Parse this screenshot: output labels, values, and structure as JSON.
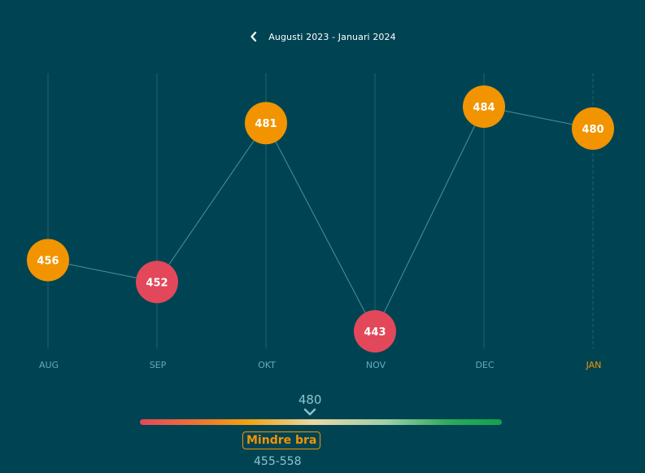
{
  "header": {
    "title": "Augusti 2023 - Januari 2024",
    "back_icon": "chevron-left-icon"
  },
  "chart_data": {
    "type": "line",
    "categories": [
      "AUG",
      "SEP",
      "OKT",
      "NOV",
      "DEC",
      "JAN"
    ],
    "series": [
      {
        "values": [
          456,
          452,
          481,
          443,
          484,
          480
        ]
      }
    ],
    "ylim": [
      437,
      491
    ],
    "grid": "vertical lines per category",
    "current_category": "JAN",
    "point_colors": [
      "#f29400",
      "#e2485a",
      "#f29400",
      "#e2485a",
      "#f29400",
      "#f29400"
    ]
  },
  "scale": {
    "value": "480",
    "category": "Mindre bra",
    "range": "455-558",
    "position": 0.47
  },
  "colors": {
    "background": "#004454",
    "orange": "#f29400",
    "red": "#e2485a",
    "green": "#13a04e",
    "axis_label": "#63aabb",
    "highlight_label": "#f29400",
    "grid": "#1f6575",
    "line": "#4f8f9c"
  }
}
